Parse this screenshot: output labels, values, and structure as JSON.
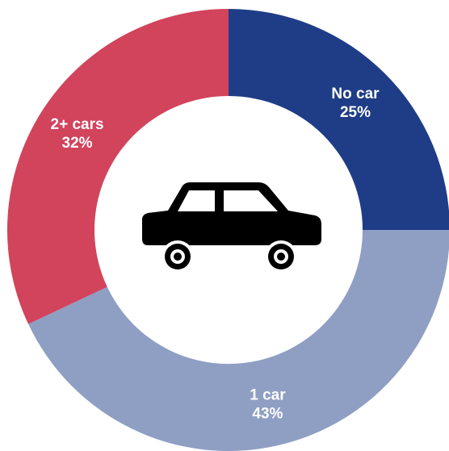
{
  "chart_data": {
    "type": "donut",
    "categories": [
      "No car",
      "1 car",
      "2+ cars"
    ],
    "values": [
      25,
      43,
      32
    ],
    "value_labels": [
      "25%",
      "43%",
      "32%"
    ],
    "colors": [
      "#1f3d86",
      "#8e9fc3",
      "#d2435c"
    ]
  }
}
